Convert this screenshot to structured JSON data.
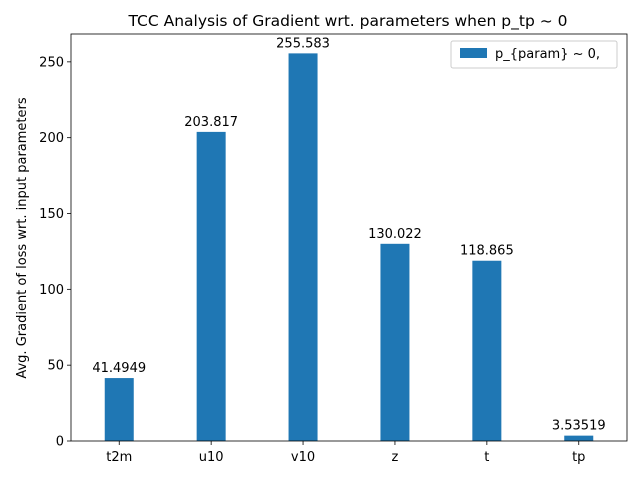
{
  "chart_data": {
    "type": "bar",
    "title": "TCC Analysis of Gradient wrt. parameters when p_tp ~ 0",
    "xlabel": "",
    "ylabel": "Avg. Gradient of loss wrt. input parameters",
    "categories": [
      "t2m",
      "u10",
      "v10",
      "z",
      "t",
      "tp"
    ],
    "series": [
      {
        "name": "p_{param} ~ 0,",
        "values": [
          41.4949,
          203.817,
          255.583,
          130.022,
          118.865,
          3.53519
        ],
        "data_labels": [
          "41.4949",
          "203.817",
          "255.583",
          "130.022",
          "118.865",
          "3.53519"
        ],
        "color": "#1f77b4"
      }
    ],
    "ylim": [
      0,
      268.36
    ],
    "yticks": [
      0,
      50,
      100,
      150,
      200,
      250
    ],
    "ytick_labels": [
      "0",
      "50",
      "100",
      "150",
      "200",
      "250"
    ],
    "grid": false,
    "legend_position": "top-right"
  }
}
